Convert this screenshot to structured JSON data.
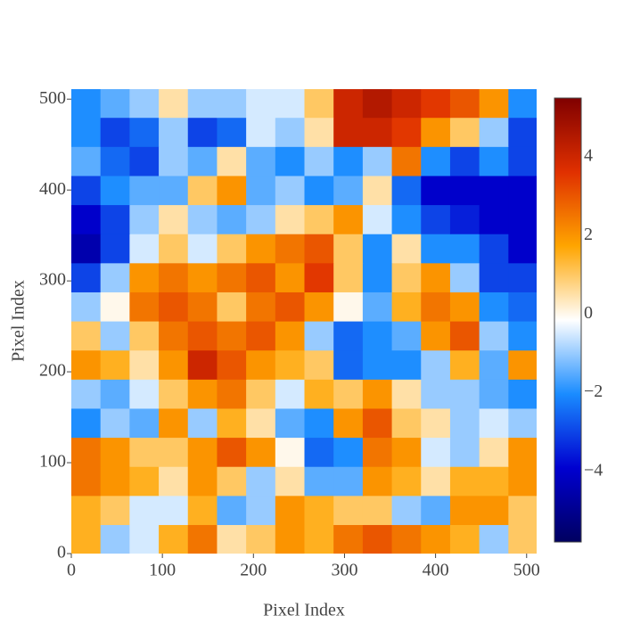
{
  "chart_data": {
    "type": "heatmap",
    "x_label": "Pixel Index",
    "y_label": "Pixel Index",
    "x": [
      16,
      48,
      80,
      112,
      144,
      176,
      208,
      240,
      272,
      304,
      336,
      368,
      400,
      432,
      464,
      496
    ],
    "y": [
      16,
      48,
      80,
      112,
      144,
      176,
      208,
      240,
      272,
      304,
      336,
      368,
      400,
      432,
      464,
      496
    ],
    "z": [
      [
        1.5,
        -1,
        -0.5,
        1.5,
        2.5,
        0.5,
        1,
        2,
        1.5,
        2.5,
        3,
        2.5,
        2,
        1.5,
        -1,
        1
      ],
      [
        1.5,
        1,
        -0.5,
        -0.5,
        1.5,
        -1.5,
        -1,
        2,
        1.5,
        1,
        1,
        -1,
        -1.5,
        2,
        2,
        1
      ],
      [
        2.5,
        2,
        1.5,
        0.5,
        2,
        1,
        -1,
        0.5,
        -1.5,
        -1.5,
        2,
        1.5,
        0.5,
        1.5,
        1.5,
        2
      ],
      [
        2.5,
        2,
        1,
        1,
        2,
        3,
        2,
        0,
        -2.5,
        -2,
        2.5,
        2,
        -0.5,
        -1,
        0.5,
        2
      ],
      [
        -2,
        -1,
        -1.5,
        2,
        -1,
        1.5,
        0.5,
        -1.5,
        -2,
        2,
        3,
        1,
        0.5,
        -1,
        -0.5,
        -1
      ],
      [
        -1,
        -1.5,
        -0.5,
        1,
        2,
        2.5,
        1,
        -0.5,
        1.5,
        1,
        2,
        0.5,
        -1,
        -1,
        -1.5,
        -2
      ],
      [
        2,
        1.5,
        0.5,
        2,
        4,
        3,
        2,
        1.5,
        1,
        -2.5,
        -2,
        -2,
        -1,
        1.5,
        -1.5,
        2
      ],
      [
        1,
        -1,
        1,
        2.5,
        3,
        2.5,
        3,
        2,
        -1,
        -2.5,
        -2,
        -1.5,
        2,
        3,
        -1,
        -2
      ],
      [
        -1,
        0,
        2.5,
        3,
        2.5,
        1,
        2.5,
        3,
        2,
        0,
        -1.5,
        1.5,
        2.5,
        2,
        -2,
        -2.5
      ],
      [
        -3,
        -1,
        2,
        2.5,
        2,
        2.5,
        3,
        2,
        3.5,
        1,
        -2,
        1,
        2,
        -1,
        -3,
        -3
      ],
      [
        -4.5,
        -3,
        -0.5,
        1,
        -0.5,
        1,
        2,
        2.5,
        3,
        1,
        -2,
        0.5,
        -2,
        -2,
        -3,
        -4
      ],
      [
        -4,
        -3,
        -1,
        0.5,
        -1,
        -1.5,
        -1,
        0.5,
        1,
        2,
        -0.5,
        -2,
        -3,
        -3.5,
        -4,
        -4
      ],
      [
        -3,
        -2,
        -1.5,
        -1.5,
        1,
        2,
        -1.5,
        -1,
        -2,
        -1.5,
        0.5,
        -2.5,
        -4,
        -4,
        -4,
        -4
      ],
      [
        -1.5,
        -2.5,
        -3,
        -1,
        -1.5,
        0.5,
        -1.5,
        -2,
        -1,
        -2,
        -1,
        2.5,
        -2,
        -3,
        -2,
        -3
      ],
      [
        -2,
        -3,
        -2.5,
        -1,
        -3,
        -2.5,
        -0.5,
        -1,
        0.5,
        4,
        4,
        3.5,
        2,
        1,
        -1,
        -3
      ],
      [
        -2,
        -1.5,
        -1,
        0.5,
        -1,
        -1,
        -0.5,
        -0.5,
        1,
        4,
        4.5,
        4,
        3.5,
        3,
        2,
        -2
      ]
    ],
    "xlim": [
      0,
      511
    ],
    "ylim": [
      0,
      511
    ],
    "xticks": [
      0,
      100,
      200,
      300,
      400,
      500
    ],
    "yticks": [
      0,
      100,
      200,
      300,
      400,
      500
    ],
    "zlim": [
      -5.8,
      5.5
    ],
    "zticks": [
      {
        "value": -4,
        "label": "−4"
      },
      {
        "value": -2,
        "label": "−2"
      },
      0,
      2,
      4
    ],
    "colorscale": [
      "#000060",
      "#0000d0",
      "#1a8cff",
      "#ffffff",
      "#ffa500",
      "#e03000",
      "#800000"
    ]
  }
}
